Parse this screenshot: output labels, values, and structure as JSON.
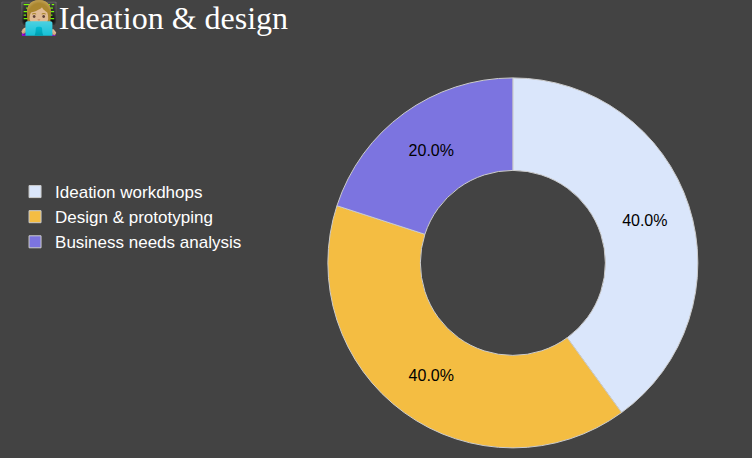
{
  "chart_data": {
    "type": "donut",
    "title": "👩🏼‍💻Ideation & design",
    "categories": [
      "Ideation workdhops",
      "Design & prototyping",
      "Business needs analysis"
    ],
    "values": [
      40,
      40,
      20
    ],
    "value_labels": [
      "40.0%",
      "40.0%",
      "20.0%"
    ],
    "colors": [
      "#dae6fb",
      "#f4bd42",
      "#7c74e0"
    ],
    "data_labels": true,
    "legend": "left"
  }
}
